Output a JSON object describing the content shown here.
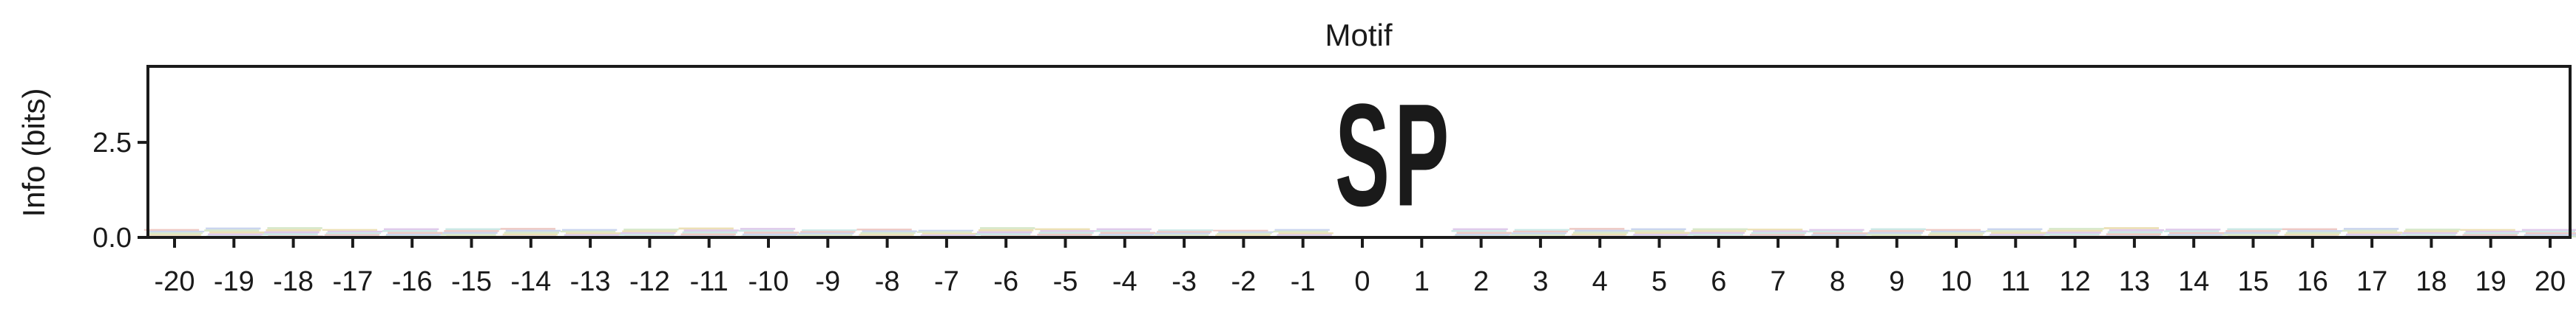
{
  "chart_data": {
    "type": "sequence-logo",
    "title": "Motif",
    "ylabel": "Info (bits)",
    "xlabel": "",
    "ylim": [
      0,
      4.5
    ],
    "yticks": [
      0.0,
      2.5
    ],
    "ytick_labels": [
      "0.0",
      "2.5"
    ],
    "positions": [
      -20,
      -19,
      -18,
      -17,
      -16,
      -15,
      -14,
      -13,
      -12,
      -11,
      -10,
      -9,
      -8,
      -7,
      -6,
      -5,
      -4,
      -3,
      -2,
      -1,
      0,
      1,
      2,
      3,
      4,
      5,
      6,
      7,
      8,
      9,
      10,
      11,
      12,
      13,
      14,
      15,
      16,
      17,
      18,
      19,
      20
    ],
    "background_info_bits": [
      0.22,
      0.26,
      0.27,
      0.22,
      0.24,
      0.24,
      0.25,
      0.22,
      0.23,
      0.26,
      0.25,
      0.21,
      0.23,
      0.2,
      0.27,
      0.24,
      0.24,
      0.21,
      0.2,
      0.22,
      4.3,
      4.3,
      0.24,
      0.22,
      0.25,
      0.24,
      0.24,
      0.23,
      0.22,
      0.24,
      0.22,
      0.24,
      0.25,
      0.27,
      0.23,
      0.24,
      0.24,
      0.25,
      0.23,
      0.22,
      0.22
    ],
    "motif_letters": [
      {
        "position": 0,
        "letter": "S",
        "bits": 4.3,
        "color": "#8b008b"
      },
      {
        "position": 1,
        "letter": "P",
        "bits": 4.3,
        "color": "#000000"
      }
    ],
    "background_colors": [
      "#e8b7b0",
      "#b8c7e8",
      "#c9e0b8",
      "#e6d59c",
      "#d4b8e4",
      "#b8e0dc"
    ],
    "grid": false
  }
}
